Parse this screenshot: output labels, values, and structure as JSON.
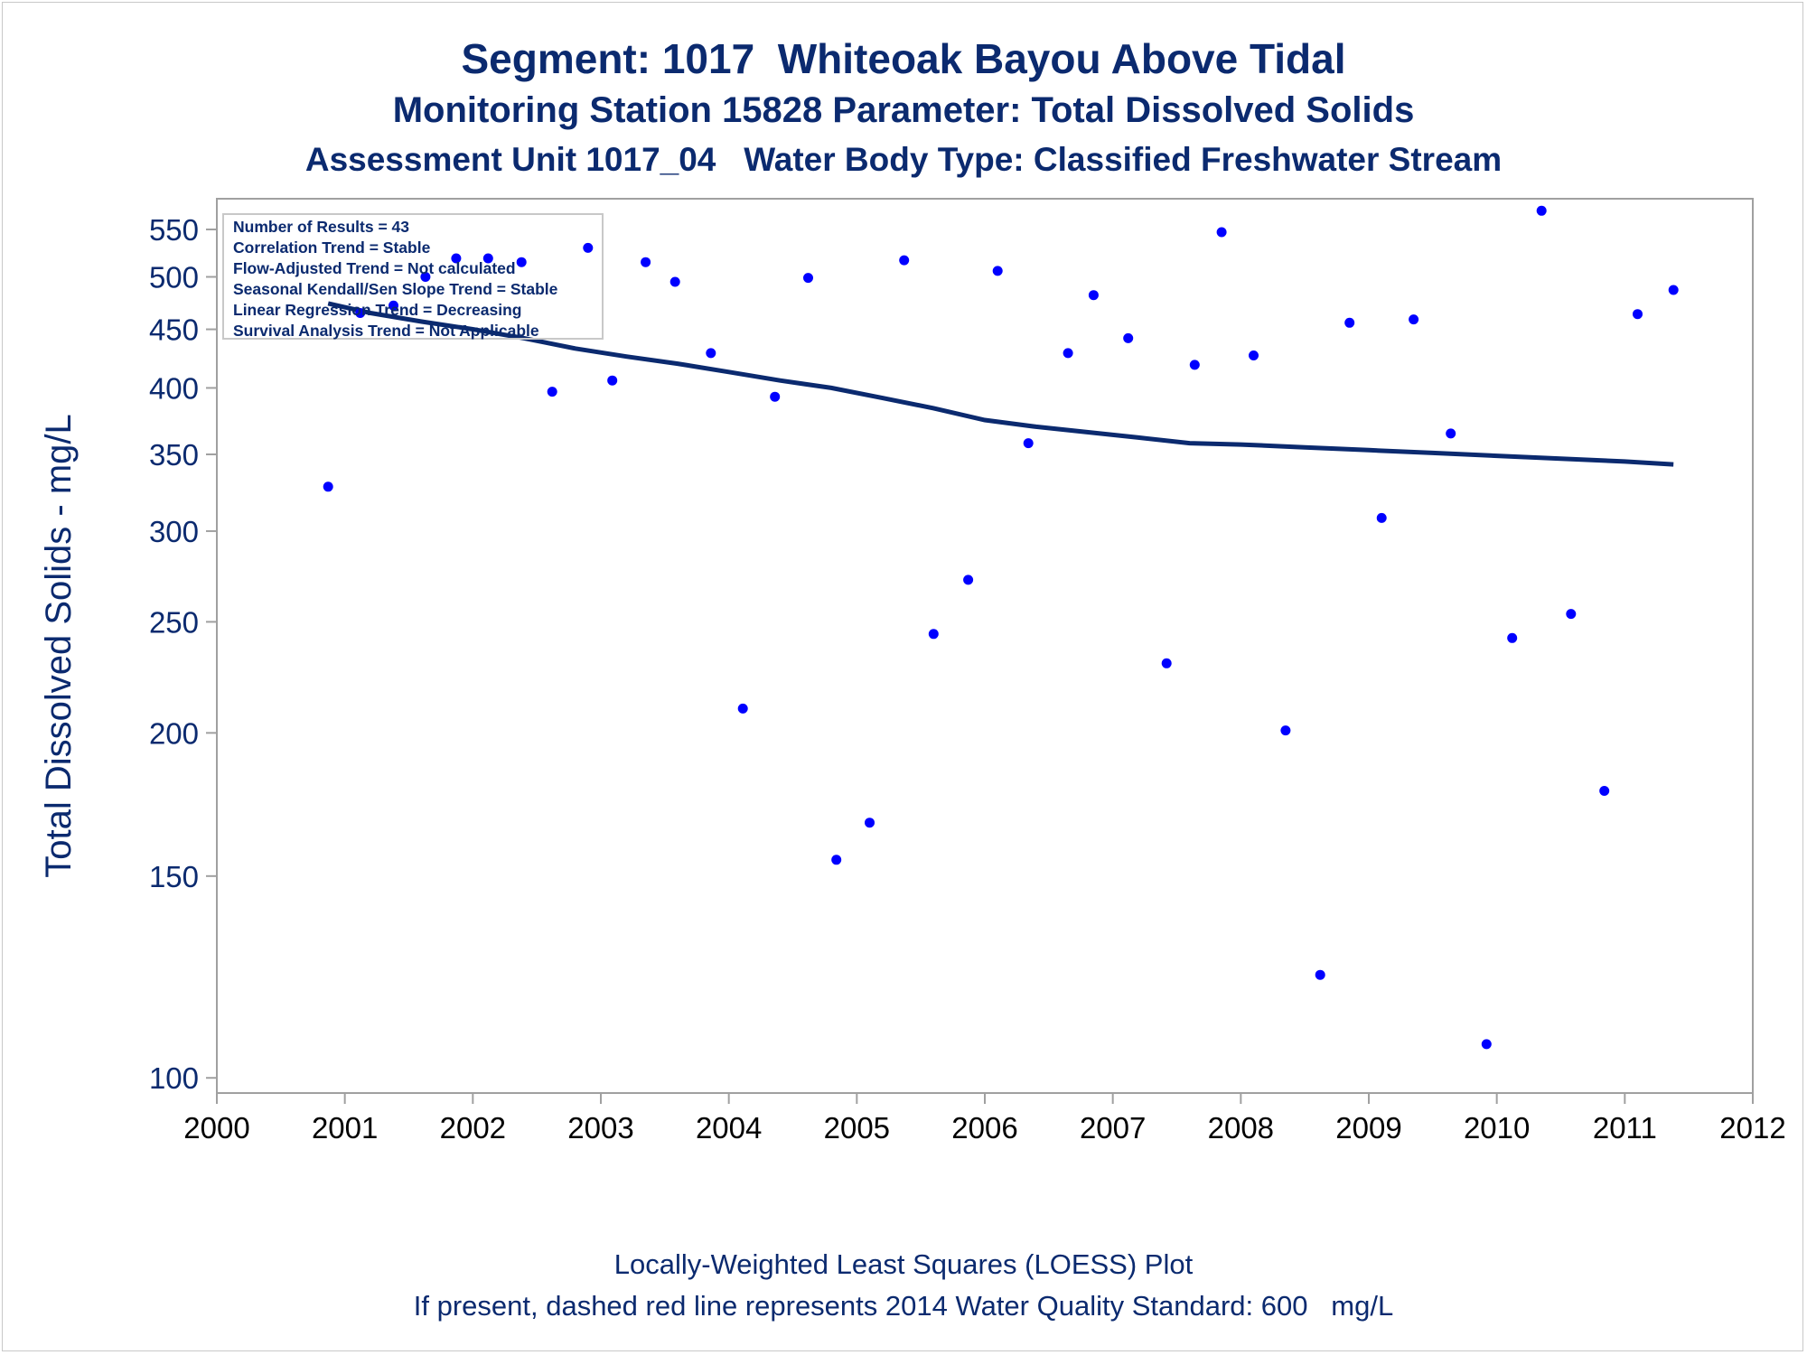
{
  "titles": {
    "line1": "Segment: 1017  Whiteoak Bayou Above Tidal",
    "line2": "Monitoring Station 15828 Parameter: Total Dissolved Solids",
    "line3": "Assessment Unit 1017_04   Water Body Type: Classified Freshwater Stream"
  },
  "footnotes": {
    "line1": "Locally-Weighted Least Squares (LOESS) Plot",
    "line2": "If present, dashed red line represents 2014 Water Quality Standard: 600   mg/L"
  },
  "stats_box": [
    "Number of Results = 43",
    "Correlation Trend = Stable",
    "Flow-Adjusted Trend = Not calculated",
    "Seasonal Kendall/Sen Slope Trend = Stable",
    "Linear Regression Trend = Decreasing",
    "Survival Analysis Trend = Not Applicable"
  ],
  "colors": {
    "text": "#0b2a6f",
    "points": "#0000ff",
    "loess_line": "#0b2a6f",
    "frame": "#a0a0a0"
  },
  "chart_data": {
    "type": "scatter",
    "title": "Segment: 1017  Whiteoak Bayou Above Tidal",
    "ylabel": "Total Dissolved Solids - mg/L",
    "xlabel": "",
    "y_scale": "log",
    "xlim": [
      2000,
      2012
    ],
    "ylim": [
      97,
      585
    ],
    "x_ticks": [
      2000,
      2001,
      2002,
      2003,
      2004,
      2005,
      2006,
      2007,
      2008,
      2009,
      2010,
      2011,
      2012
    ],
    "y_ticks": [
      100,
      150,
      200,
      250,
      300,
      350,
      400,
      450,
      500,
      550
    ],
    "grid": false,
    "legend_position": "top-left",
    "series": [
      {
        "type": "scatter",
        "points": [
          {
            "x": 2000.87,
            "y": 328
          },
          {
            "x": 2001.12,
            "y": 465
          },
          {
            "x": 2001.38,
            "y": 472
          },
          {
            "x": 2001.63,
            "y": 500
          },
          {
            "x": 2001.87,
            "y": 519
          },
          {
            "x": 2002.12,
            "y": 519
          },
          {
            "x": 2002.38,
            "y": 515
          },
          {
            "x": 2002.62,
            "y": 397
          },
          {
            "x": 2002.9,
            "y": 530
          },
          {
            "x": 2003.09,
            "y": 406
          },
          {
            "x": 2003.35,
            "y": 515
          },
          {
            "x": 2003.58,
            "y": 495
          },
          {
            "x": 2003.86,
            "y": 429
          },
          {
            "x": 2004.11,
            "y": 210
          },
          {
            "x": 2004.36,
            "y": 393
          },
          {
            "x": 2004.62,
            "y": 499
          },
          {
            "x": 2004.84,
            "y": 155
          },
          {
            "x": 2005.1,
            "y": 167
          },
          {
            "x": 2005.37,
            "y": 517
          },
          {
            "x": 2005.6,
            "y": 244
          },
          {
            "x": 2005.87,
            "y": 272
          },
          {
            "x": 2006.1,
            "y": 506
          },
          {
            "x": 2006.34,
            "y": 358
          },
          {
            "x": 2006.65,
            "y": 429
          },
          {
            "x": 2006.85,
            "y": 482
          },
          {
            "x": 2007.12,
            "y": 442
          },
          {
            "x": 2007.42,
            "y": 230
          },
          {
            "x": 2007.64,
            "y": 419
          },
          {
            "x": 2007.85,
            "y": 547
          },
          {
            "x": 2008.1,
            "y": 427
          },
          {
            "x": 2008.35,
            "y": 201
          },
          {
            "x": 2008.62,
            "y": 123
          },
          {
            "x": 2008.85,
            "y": 456
          },
          {
            "x": 2009.1,
            "y": 308
          },
          {
            "x": 2009.35,
            "y": 459
          },
          {
            "x": 2009.64,
            "y": 365
          },
          {
            "x": 2009.92,
            "y": 107
          },
          {
            "x": 2010.12,
            "y": 242
          },
          {
            "x": 2010.35,
            "y": 571
          },
          {
            "x": 2010.58,
            "y": 254
          },
          {
            "x": 2010.84,
            "y": 178
          },
          {
            "x": 2011.1,
            "y": 464
          },
          {
            "x": 2011.38,
            "y": 487
          }
        ]
      },
      {
        "type": "line",
        "points": [
          {
            "x": 2000.87,
            "y": 474
          },
          {
            "x": 2001.2,
            "y": 465
          },
          {
            "x": 2001.6,
            "y": 457
          },
          {
            "x": 2002.0,
            "y": 450
          },
          {
            "x": 2002.4,
            "y": 442
          },
          {
            "x": 2002.8,
            "y": 433
          },
          {
            "x": 2003.2,
            "y": 426
          },
          {
            "x": 2003.6,
            "y": 420
          },
          {
            "x": 2004.0,
            "y": 413
          },
          {
            "x": 2004.4,
            "y": 406
          },
          {
            "x": 2004.8,
            "y": 400
          },
          {
            "x": 2005.2,
            "y": 392
          },
          {
            "x": 2005.6,
            "y": 384
          },
          {
            "x": 2006.0,
            "y": 375
          },
          {
            "x": 2006.4,
            "y": 370
          },
          {
            "x": 2006.8,
            "y": 366
          },
          {
            "x": 2007.2,
            "y": 362
          },
          {
            "x": 2007.6,
            "y": 358
          },
          {
            "x": 2008.0,
            "y": 357
          },
          {
            "x": 2008.5,
            "y": 355
          },
          {
            "x": 2009.0,
            "y": 353
          },
          {
            "x": 2009.5,
            "y": 351
          },
          {
            "x": 2010.0,
            "y": 349
          },
          {
            "x": 2010.5,
            "y": 347
          },
          {
            "x": 2011.0,
            "y": 345
          },
          {
            "x": 2011.38,
            "y": 343
          }
        ]
      }
    ]
  }
}
